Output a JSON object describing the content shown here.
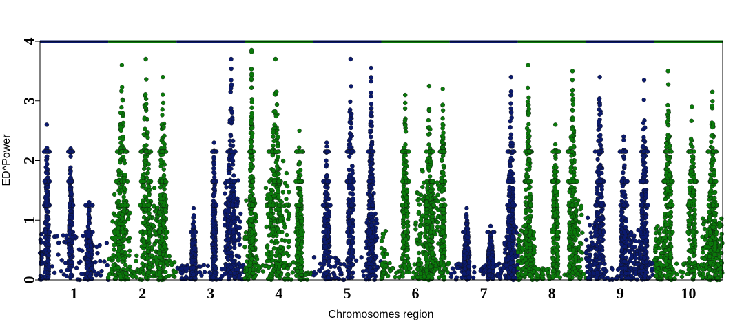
{
  "chart_data": {
    "type": "scatter",
    "title": "",
    "xlabel": "Chromosomes region",
    "ylabel": "ED^Power",
    "ylim": [
      0,
      4
    ],
    "y_ticks": [
      "0",
      "1",
      "2",
      "3",
      "4"
    ],
    "categories": [
      "1",
      "2",
      "3",
      "4",
      "5",
      "6",
      "7",
      "8",
      "9",
      "10"
    ],
    "colors": [
      "#0b1a6e",
      "#0a7a0a"
    ],
    "ceiling_value": 4,
    "grid": false,
    "legend": "none",
    "chromosomes": [
      {
        "label": "1",
        "span": [
          0.0,
          1.0
        ],
        "peaks": [
          {
            "center": 0.1,
            "width": 0.06,
            "max": 2.6
          },
          {
            "center": 0.45,
            "width": 0.05,
            "max": 2.2
          },
          {
            "center": 0.72,
            "width": 0.08,
            "max": 1.3
          }
        ],
        "dense_segments": [
          {
            "range": [
              0.0,
              0.05
            ],
            "height": 0.8
          }
        ],
        "floor": 0.8
      },
      {
        "label": "2",
        "span": [
          1.0,
          2.0
        ],
        "peaks": [
          {
            "center": 0.2,
            "width": 0.12,
            "max": 3.6
          },
          {
            "center": 0.55,
            "width": 0.12,
            "max": 3.7
          },
          {
            "center": 0.8,
            "width": 0.1,
            "max": 3.4
          }
        ],
        "dense_segments": [
          {
            "range": [
              0.05,
              0.32
            ],
            "height": 1.7
          },
          {
            "range": [
              0.55,
              0.85
            ],
            "height": 1.8
          }
        ],
        "floor": 0.5
      },
      {
        "label": "3",
        "span": [
          2.0,
          3.0
        ],
        "peaks": [
          {
            "center": 0.25,
            "width": 0.06,
            "max": 1.2
          },
          {
            "center": 0.55,
            "width": 0.05,
            "max": 2.3
          },
          {
            "center": 0.8,
            "width": 0.1,
            "max": 3.7
          }
        ],
        "dense_segments": [
          {
            "range": [
              0.7,
              0.95
            ],
            "height": 1.9
          }
        ],
        "floor": 0.25
      },
      {
        "label": "4",
        "span": [
          3.0,
          4.0
        ],
        "peaks": [
          {
            "center": 0.1,
            "width": 0.05,
            "max": 3.85
          },
          {
            "center": 0.45,
            "width": 0.15,
            "max": 3.7
          },
          {
            "center": 0.8,
            "width": 0.08,
            "max": 2.5
          }
        ],
        "dense_segments": [
          {
            "range": [
              0.0,
              0.18
            ],
            "height": 1.5
          },
          {
            "range": [
              0.3,
              0.65
            ],
            "height": 2.1
          }
        ],
        "floor": 0.3
      },
      {
        "label": "5",
        "span": [
          4.0,
          5.0
        ],
        "peaks": [
          {
            "center": 0.2,
            "width": 0.08,
            "max": 2.3
          },
          {
            "center": 0.55,
            "width": 0.08,
            "max": 3.7
          },
          {
            "center": 0.85,
            "width": 0.06,
            "max": 3.55
          }
        ],
        "dense_segments": [
          {
            "range": [
              0.78,
              0.95
            ],
            "height": 1.6
          }
        ],
        "floor": 0.4
      },
      {
        "label": "6",
        "span": [
          5.0,
          6.0
        ],
        "peaks": [
          {
            "center": 0.35,
            "width": 0.08,
            "max": 3.1
          },
          {
            "center": 0.7,
            "width": 0.1,
            "max": 3.25
          },
          {
            "center": 0.9,
            "width": 0.06,
            "max": 3.2
          }
        ],
        "dense_segments": [
          {
            "range": [
              0.0,
              0.08
            ],
            "height": 1.0
          },
          {
            "range": [
              0.5,
              0.85
            ],
            "height": 1.9
          }
        ],
        "floor": 0.3
      },
      {
        "label": "7",
        "span": [
          6.0,
          7.0
        ],
        "peaks": [
          {
            "center": 0.25,
            "width": 0.08,
            "max": 1.2
          },
          {
            "center": 0.6,
            "width": 0.08,
            "max": 0.9
          },
          {
            "center": 0.9,
            "width": 0.08,
            "max": 3.4
          }
        ],
        "dense_segments": [
          {
            "range": [
              0.8,
              1.0
            ],
            "height": 1.1
          }
        ],
        "floor": 0.3
      },
      {
        "label": "8",
        "span": [
          7.0,
          8.0
        ],
        "peaks": [
          {
            "center": 0.15,
            "width": 0.08,
            "max": 3.6
          },
          {
            "center": 0.55,
            "width": 0.08,
            "max": 2.6
          },
          {
            "center": 0.8,
            "width": 0.1,
            "max": 3.5
          }
        ],
        "dense_segments": [
          {
            "range": [
              0.0,
              0.25
            ],
            "height": 1.0
          },
          {
            "range": [
              0.75,
              0.95
            ],
            "height": 1.4
          }
        ],
        "floor": 0.2
      },
      {
        "label": "9",
        "span": [
          8.0,
          9.0
        ],
        "peaks": [
          {
            "center": 0.2,
            "width": 0.1,
            "max": 3.4
          },
          {
            "center": 0.55,
            "width": 0.08,
            "max": 2.4
          },
          {
            "center": 0.85,
            "width": 0.08,
            "max": 3.35
          }
        ],
        "dense_segments": [
          {
            "range": [
              0.0,
              0.18
            ],
            "height": 1.1
          },
          {
            "range": [
              0.55,
              0.9
            ],
            "height": 0.9
          }
        ],
        "floor": 0.3
      },
      {
        "label": "10",
        "span": [
          9.0,
          10.0
        ],
        "peaks": [
          {
            "center": 0.2,
            "width": 0.1,
            "max": 3.5
          },
          {
            "center": 0.55,
            "width": 0.1,
            "max": 2.9
          },
          {
            "center": 0.85,
            "width": 0.1,
            "max": 3.15
          }
        ],
        "dense_segments": [
          {
            "range": [
              0.0,
              0.25
            ],
            "height": 1.0
          },
          {
            "range": [
              0.7,
              1.0
            ],
            "height": 1.2
          }
        ],
        "floor": 0.3
      }
    ]
  }
}
